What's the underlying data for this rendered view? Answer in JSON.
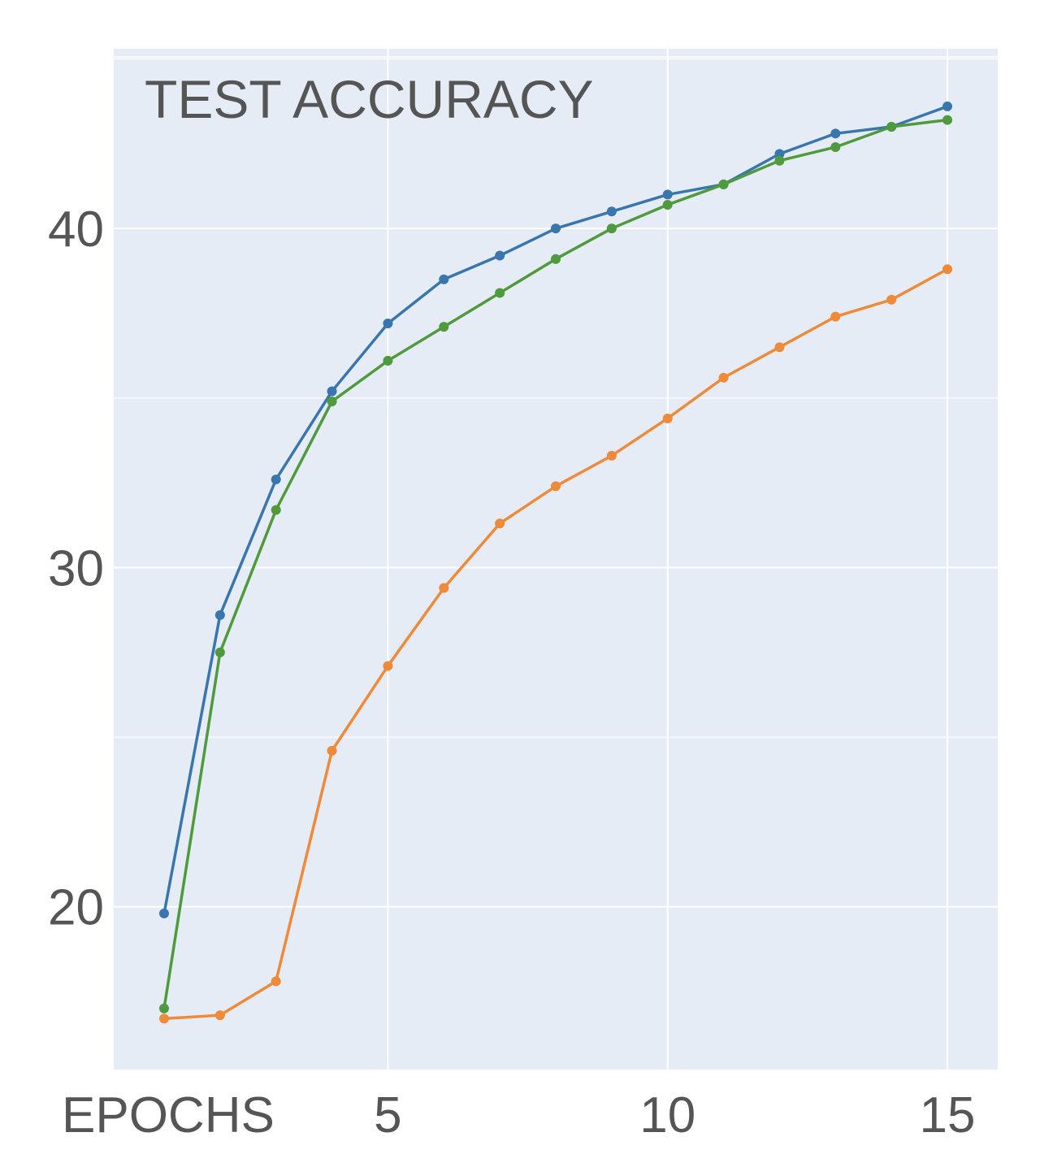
{
  "chart_data": {
    "type": "line",
    "title": "TEST ACCURACY",
    "xlabel": "EPOCHS",
    "ylabel": "",
    "x": [
      1,
      2,
      3,
      4,
      5,
      6,
      7,
      8,
      9,
      10,
      11,
      12,
      13,
      14,
      15
    ],
    "xlim": [
      0.1,
      15.9
    ],
    "ylim": [
      15.2,
      45.3
    ],
    "xticks": [
      5,
      10,
      15
    ],
    "xtick_labels": [
      "5",
      "10",
      "15"
    ],
    "yticks": [
      20,
      30,
      40
    ],
    "ytick_labels": [
      "20",
      "30",
      "40"
    ],
    "grid": true,
    "background_color": "#e6ecf6",
    "grid_color": "#ffffff",
    "series": [
      {
        "color": "#3a76ae",
        "values": [
          19.8,
          28.6,
          32.6,
          35.2,
          37.2,
          38.5,
          39.2,
          40.0,
          40.5,
          41.0,
          41.3,
          42.2,
          42.8,
          43.0,
          43.6
        ]
      },
      {
        "color": "#4f9a3c",
        "values": [
          17.0,
          27.5,
          31.7,
          34.9,
          36.1,
          37.1,
          38.1,
          39.1,
          40.0,
          40.7,
          41.3,
          42.0,
          42.4,
          43.0,
          43.2
        ]
      },
      {
        "color": "#ee8a3a",
        "values": [
          16.7,
          16.8,
          17.8,
          24.6,
          27.1,
          29.4,
          31.3,
          32.4,
          33.3,
          34.4,
          35.6,
          36.5,
          37.4,
          37.9,
          38.8
        ]
      }
    ]
  }
}
